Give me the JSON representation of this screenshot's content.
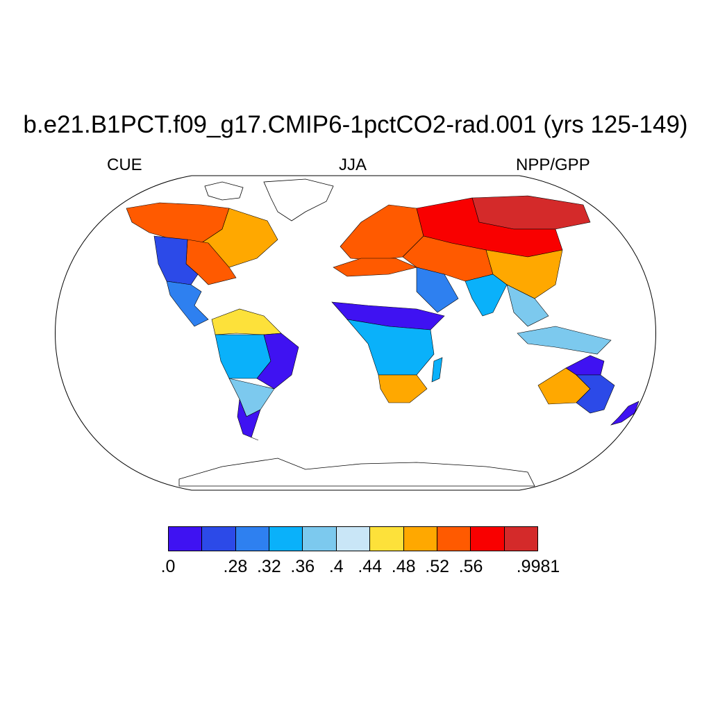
{
  "title": "b.e21.B1PCT.f09_g17.CMIP6-1pctCO2-rad.001 (yrs 125-149)",
  "left_subtitle": "CUE",
  "center_subtitle": "JJA",
  "right_subtitle": "NPP/GPP",
  "projection": "Robinson",
  "colorbar": {
    "colors": [
      "#3f12f2",
      "#2c4ae8",
      "#2e80f0",
      "#0ab1fa",
      "#7cc9ee",
      "#c9e6f7",
      "#fde13a",
      "#ffa800",
      "#ff5a00",
      "#f90000",
      "#d42a2a"
    ],
    "labels": [
      ".0",
      "",
      ".28",
      ".32",
      ".36",
      ".4",
      ".44",
      ".48",
      ".52",
      ".56",
      "",
      ".9981"
    ]
  },
  "map_regions": [
    {
      "name": "alaska-canada-nw",
      "bin": 8
    },
    {
      "name": "canada-east",
      "bin": 7
    },
    {
      "name": "usa-east",
      "bin": 8
    },
    {
      "name": "usa-west",
      "bin": 1
    },
    {
      "name": "mexico",
      "bin": 2
    },
    {
      "name": "amazon-north",
      "bin": 6
    },
    {
      "name": "amazon-central",
      "bin": 3
    },
    {
      "name": "brazil-east",
      "bin": 0
    },
    {
      "name": "south-america-south",
      "bin": 4
    },
    {
      "name": "patagonia",
      "bin": 0
    },
    {
      "name": "europe",
      "bin": 8
    },
    {
      "name": "siberia",
      "bin": 10
    },
    {
      "name": "russia-central",
      "bin": 9
    },
    {
      "name": "central-asia",
      "bin": 8
    },
    {
      "name": "middle-east",
      "bin": 2
    },
    {
      "name": "india",
      "bin": 3
    },
    {
      "name": "china",
      "bin": 7
    },
    {
      "name": "southeast-asia",
      "bin": 4
    },
    {
      "name": "indonesia",
      "bin": 4
    },
    {
      "name": "north-africa-coast",
      "bin": 8
    },
    {
      "name": "sahel",
      "bin": 0
    },
    {
      "name": "central-africa",
      "bin": 3
    },
    {
      "name": "southern-africa",
      "bin": 7
    },
    {
      "name": "madagascar",
      "bin": 3
    },
    {
      "name": "australia-north",
      "bin": 0
    },
    {
      "name": "australia-interior",
      "bin": 7
    },
    {
      "name": "australia-southeast",
      "bin": 1
    },
    {
      "name": "new-zealand",
      "bin": 0
    }
  ]
}
